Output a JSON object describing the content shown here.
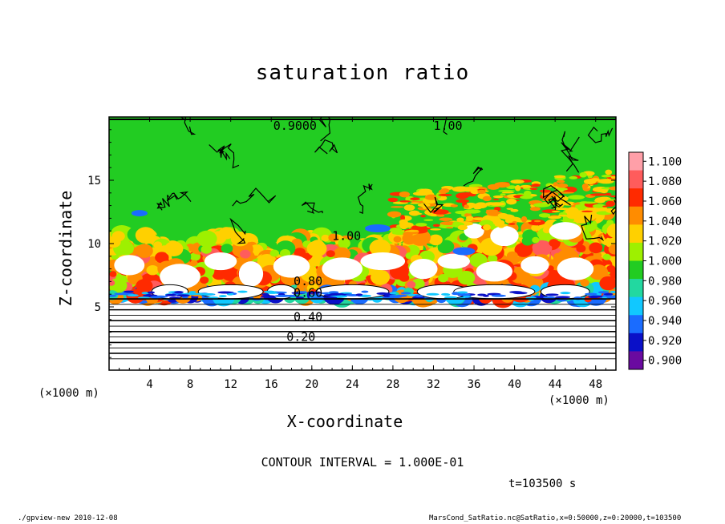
{
  "chart_data": {
    "type": "heatmap",
    "title": "saturation ratio",
    "xlabel": "X-coordinate",
    "ylabel": "Z-coordinate",
    "x_unit": "(×1000 m)",
    "z_unit": "(×1000 m)",
    "xlim": [
      0,
      50
    ],
    "ylim": [
      0,
      20
    ],
    "x_ticks": [
      "4",
      "8",
      "12",
      "16",
      "20",
      "24",
      "28",
      "32",
      "36",
      "40",
      "44",
      "48"
    ],
    "y_ticks": [
      "5",
      "10",
      "15"
    ],
    "colorbar": {
      "levels": [
        "1.100",
        "1.080",
        "1.060",
        "1.040",
        "1.020",
        "1.000",
        "0.980",
        "0.960",
        "0.940",
        "0.920",
        "0.900"
      ],
      "colors": [
        "#ff9fa8",
        "#ff5c5c",
        "#ff2a00",
        "#ff8c00",
        "#ffd000",
        "#9ef000",
        "#22cc22",
        "#22d8a0",
        "#11c8ff",
        "#1a6cff",
        "#0a10c8",
        "#6a0aa0"
      ]
    },
    "contour_labels": [
      "0.9000",
      "1.00",
      "1.00",
      "0.80",
      "0.60",
      "0.40",
      "0.20"
    ],
    "contour_interval": "CONTOUR INTERVAL = 1.000E-01",
    "time": "t=103500 s"
  },
  "footer": {
    "left": "./gpview-new  2010-12-08",
    "right": "MarsCond_SatRatio.nc@SatRatio,x=0:50000,z=0:20000,t=103500"
  }
}
